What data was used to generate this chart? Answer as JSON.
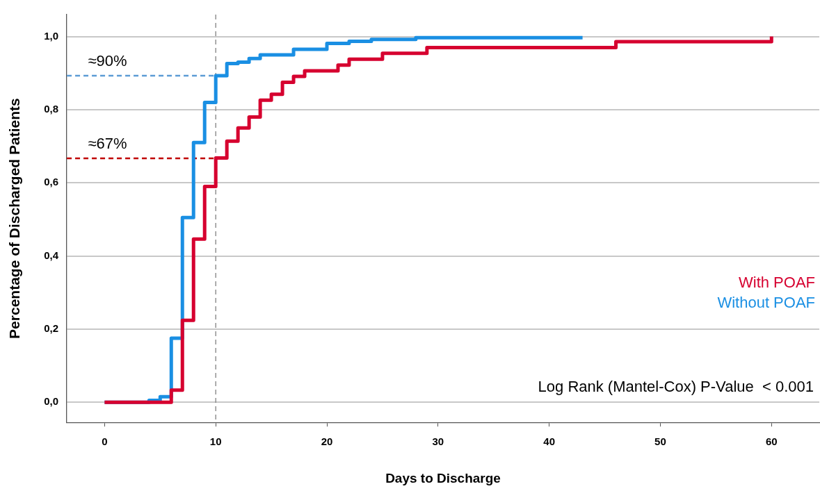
{
  "chart_data": {
    "type": "step",
    "xlabel": "Days to Discharge",
    "ylabel": "Percentage of Discharged Patients",
    "xlim": [
      -3.4,
      64.3
    ],
    "xticks": [
      0,
      10,
      20,
      30,
      40,
      50,
      60
    ],
    "ylim": [
      -0.055,
      1.06
    ],
    "yticks": [
      {
        "value": 0,
        "label": "0,0"
      },
      {
        "value": 0.2,
        "label": "0,2"
      },
      {
        "value": 0.4,
        "label": "0,4"
      },
      {
        "value": 0.6,
        "label": "0,6"
      },
      {
        "value": 0.8,
        "label": "0,8"
      },
      {
        "value": 1,
        "label": "1,0"
      }
    ],
    "grid": "y",
    "legend": "right",
    "marker": "none",
    "line_style": "solid",
    "series": [
      {
        "name": "With POAF",
        "color": "#d6002f",
        "x": [
          0,
          6,
          7,
          8,
          9,
          10,
          11,
          12,
          13,
          14,
          15,
          16,
          17,
          18,
          21,
          22,
          25,
          29,
          46,
          60
        ],
        "values": [
          0,
          0.033,
          0.224,
          0.446,
          0.59,
          0.668,
          0.714,
          0.75,
          0.78,
          0.826,
          0.842,
          0.875,
          0.891,
          0.906,
          0.922,
          0.938,
          0.954,
          0.97,
          0.986,
          1.0
        ]
      },
      {
        "name": "Without POAF",
        "color": "#1a8fe3",
        "x": [
          0,
          4,
          5,
          6,
          7,
          8,
          9,
          10,
          11,
          12,
          13,
          14,
          17,
          20,
          22,
          24,
          28,
          43
        ],
        "values": [
          0,
          0.005,
          0.015,
          0.175,
          0.505,
          0.71,
          0.82,
          0.893,
          0.926,
          0.93,
          0.94,
          0.95,
          0.965,
          0.981,
          0.987,
          0.992,
          0.997,
          0.997
        ]
      },
      {
        "type": "line",
        "line_style": "dashed",
        "color": "#5b9bd5",
        "x": [
          -3.4,
          10
        ],
        "values": [
          0.893,
          0.893
        ]
      },
      {
        "type": "line",
        "line_style": "dashed",
        "color": "#c00000",
        "x": [
          -3.4,
          10
        ],
        "values": [
          0.667,
          0.667
        ]
      }
    ],
    "ref_lines": [
      {
        "axis": "x",
        "value": 10,
        "color": "#808080",
        "line_style": "dashed"
      }
    ],
    "annotations": [
      {
        "text": "≈90%",
        "x": -1.5,
        "y": 0.893
      },
      {
        "text": "≈67%",
        "x": -1.5,
        "y": 0.667
      },
      "Log Rank (Mantel-Cox) P-Value  < 0.001"
    ]
  }
}
